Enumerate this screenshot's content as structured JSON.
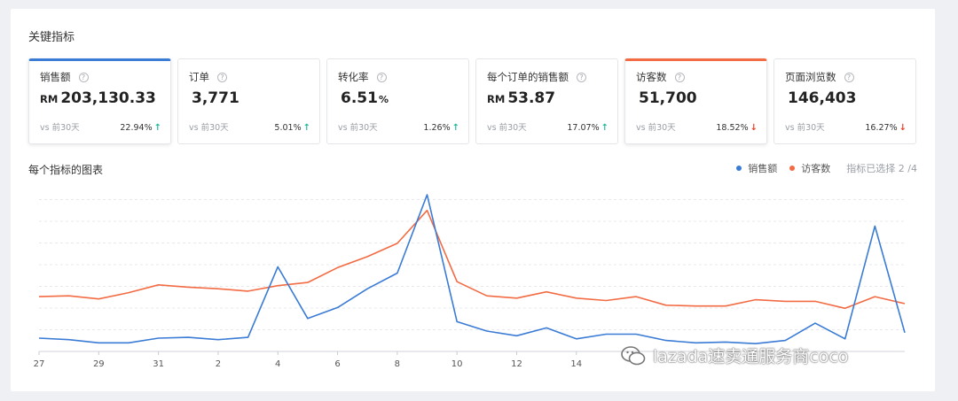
{
  "section": {
    "title": "关键指标"
  },
  "kpis": [
    {
      "label": "销售额",
      "currency": "RM",
      "value": "203,130.33",
      "unit": "",
      "compare": "vs 前30天",
      "change": "22.94%",
      "direction": "up",
      "selected": "blue"
    },
    {
      "label": "订单",
      "currency": "",
      "value": "3,771",
      "unit": "",
      "compare": "vs 前30天",
      "change": "5.01%",
      "direction": "up",
      "selected": ""
    },
    {
      "label": "转化率",
      "currency": "",
      "value": "6.51",
      "unit": "%",
      "compare": "vs 前30天",
      "change": "1.26%",
      "direction": "up",
      "selected": ""
    },
    {
      "label": "每个订单的销售额",
      "currency": "RM",
      "value": "53.87",
      "unit": "",
      "compare": "vs 前30天",
      "change": "17.07%",
      "direction": "up",
      "selected": ""
    },
    {
      "label": "访客数",
      "currency": "",
      "value": "51,700",
      "unit": "",
      "compare": "vs 前30天",
      "change": "18.52%",
      "direction": "down",
      "selected": "orange"
    },
    {
      "label": "页面浏览数",
      "currency": "",
      "value": "146,403",
      "unit": "",
      "compare": "vs 前30天",
      "change": "16.27%",
      "direction": "down",
      "selected": ""
    }
  ],
  "chart_section": {
    "title": "每个指标的图表",
    "legend": [
      {
        "name": "销售额",
        "color": "#3a7bd5"
      },
      {
        "name": "访客数",
        "color": "#f26b43"
      }
    ],
    "selection_text": "指标已选择 2 /4"
  },
  "chart_data": {
    "type": "line",
    "x_ticks": [
      "27",
      "29",
      "31",
      "2",
      "4",
      "6",
      "8",
      "10",
      "12",
      "14"
    ],
    "ylim": [
      0,
      100
    ],
    "grid": true,
    "series": [
      {
        "name": "销售额",
        "color": "#3a7bd5",
        "values": [
          8.5,
          7.5,
          5.5,
          5.5,
          8.5,
          9,
          7.5,
          9,
          54,
          21,
          28,
          40,
          50,
          100,
          19,
          13,
          10,
          15,
          8,
          11,
          11,
          7,
          5.5,
          6,
          5,
          7,
          18,
          8,
          80,
          12
        ]
      },
      {
        "name": "访客数",
        "color": "#f26b43",
        "values": [
          35,
          35.5,
          33.5,
          37.5,
          42.5,
          41,
          40,
          38.5,
          42,
          44,
          53.5,
          60.5,
          69,
          90,
          44.5,
          35.5,
          34,
          38,
          34,
          32.5,
          35,
          29.5,
          29,
          29,
          33,
          32,
          32,
          27.5,
          35,
          30.5
        ]
      }
    ]
  },
  "watermark": {
    "text": "lazada速卖通服务商coco",
    "icon": "wechat-icon"
  }
}
